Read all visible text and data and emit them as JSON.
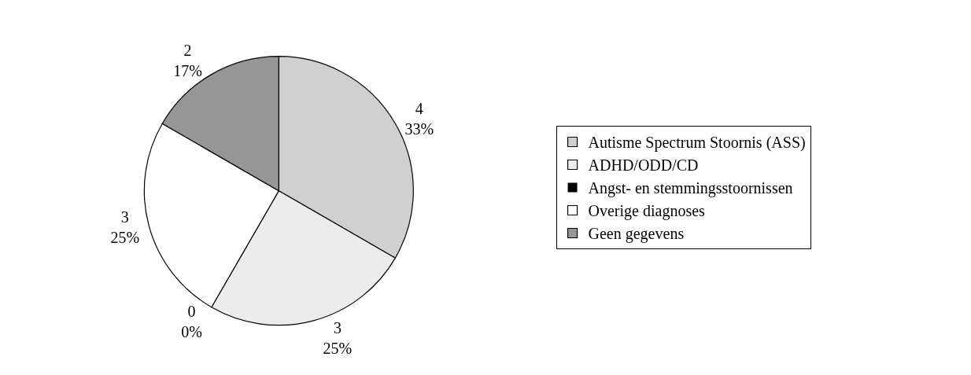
{
  "chart_data": {
    "type": "pie",
    "categories": [
      "Autisme Spectrum Stoornis (ASS)",
      "ADHD/ODD/CD",
      "Angst- en stemmingsstoornissen",
      "Overige diagnoses",
      "Geen gegevens"
    ],
    "values": [
      4,
      3,
      0,
      3,
      2
    ],
    "colors": [
      "#d0d0d0",
      "#ececec",
      "#000000",
      "#ffffff",
      "#969696"
    ],
    "value_labels": [
      "4\n33%",
      "3\n25%",
      "0\n0%",
      "3\n25%",
      "2\n17%"
    ],
    "legend": "right"
  }
}
